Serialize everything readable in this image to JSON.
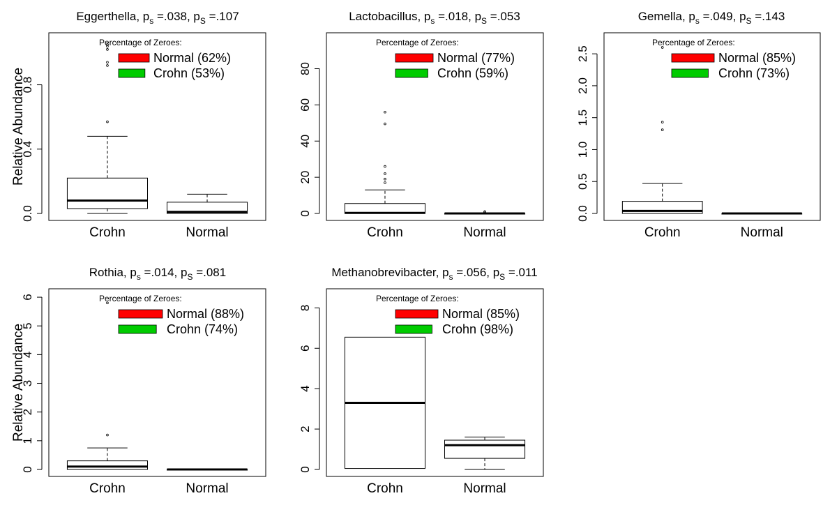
{
  "chart_data": [
    {
      "type": "boxplot",
      "title": {
        "name": "Eggerthella",
        "p1": ".038",
        "p2": ".107"
      },
      "ylabel": "Relative Abundance",
      "ylim": [
        0,
        1.08
      ],
      "yticks": [
        0,
        0.4,
        0.8
      ],
      "ytick_labels": [
        "0.0",
        "0.4",
        "0.8"
      ],
      "categories": [
        "Crohn",
        "Normal"
      ],
      "legend": {
        "title": "Percentage of Zeroes:",
        "entries": [
          {
            "label": "Normal (62%)",
            "color": "#ff0000"
          },
          {
            "label": "Crohn (53%)",
            "color": "#00cc00"
          }
        ]
      },
      "boxes": [
        {
          "name": "Crohn",
          "whisker_low": 0.0,
          "q1": 0.03,
          "median": 0.08,
          "q3": 0.22,
          "whisker_high": 0.48,
          "outliers": [
            0.57,
            0.92,
            0.94,
            1.02,
            1.04,
            1.05
          ]
        },
        {
          "name": "Normal",
          "whisker_low": 0.0,
          "q1": 0.0,
          "median": 0.01,
          "q3": 0.07,
          "whisker_high": 0.12,
          "outliers": []
        }
      ]
    },
    {
      "type": "boxplot",
      "title": {
        "name": "Lactobacillus",
        "p1": ".018",
        "p2": ".053"
      },
      "ylabel": "",
      "ylim": [
        0,
        96
      ],
      "yticks": [
        0,
        20,
        40,
        60,
        80
      ],
      "ytick_labels": [
        "0",
        "20",
        "40",
        "60",
        "80"
      ],
      "categories": [
        "Crohn",
        "Normal"
      ],
      "legend": {
        "title": "Percentage of Zeroes:",
        "entries": [
          {
            "label": "Normal (77%)",
            "color": "#ff0000"
          },
          {
            "label": "Crohn (59%)",
            "color": "#00cc00"
          }
        ]
      },
      "boxes": [
        {
          "name": "Crohn",
          "whisker_low": 0,
          "q1": 0,
          "median": 0.3,
          "q3": 5.5,
          "whisker_high": 13,
          "outliers": [
            17,
            19,
            22,
            26,
            49.5,
            56
          ]
        },
        {
          "name": "Normal",
          "whisker_low": 0,
          "q1": 0,
          "median": 0,
          "q3": 0,
          "whisker_high": 0,
          "outliers": [
            0.7,
            1.0
          ]
        }
      ]
    },
    {
      "type": "boxplot",
      "title": {
        "name": "Gemella",
        "p1": ".049",
        "p2": ".143"
      },
      "ylabel": "",
      "ylim": [
        0,
        2.72
      ],
      "yticks": [
        0,
        0.5,
        1.0,
        1.5,
        2.0,
        2.5
      ],
      "ytick_labels": [
        "0.0",
        "0.5",
        "1.0",
        "1.5",
        "2.0",
        "2.5"
      ],
      "categories": [
        "Crohn",
        "Normal"
      ],
      "legend": {
        "title": "Percentage of Zeroes:",
        "entries": [
          {
            "label": "Normal (85%)",
            "color": "#ff0000"
          },
          {
            "label": "Crohn (73%)",
            "color": "#00cc00"
          }
        ]
      },
      "boxes": [
        {
          "name": "Crohn",
          "whisker_low": 0,
          "q1": 0,
          "median": 0.04,
          "q3": 0.19,
          "whisker_high": 0.47,
          "outliers": [
            1.31,
            1.43,
            2.6
          ]
        },
        {
          "name": "Normal",
          "whisker_low": 0,
          "q1": 0,
          "median": 0,
          "q3": 0,
          "whisker_high": 0,
          "outliers": []
        }
      ]
    },
    {
      "type": "boxplot",
      "title": {
        "name": "Rothia",
        "p1": ".014",
        "p2": ".081"
      },
      "ylabel": "Relative Abundance",
      "ylim": [
        0,
        6.05
      ],
      "yticks": [
        0,
        1,
        2,
        3,
        4,
        5,
        6
      ],
      "ytick_labels": [
        "0",
        "1",
        "2",
        "3",
        "4",
        "5",
        "6"
      ],
      "categories": [
        "Crohn",
        "Normal"
      ],
      "legend": {
        "title": "Percentage of Zeroes:",
        "entries": [
          {
            "label": "Normal (88%)",
            "color": "#ff0000"
          },
          {
            "label": "Crohn (74%)",
            "color": "#00cc00"
          }
        ]
      },
      "boxes": [
        {
          "name": "Crohn",
          "whisker_low": 0,
          "q1": 0,
          "median": 0.1,
          "q3": 0.3,
          "whisker_high": 0.75,
          "outliers": [
            1.2,
            5.8
          ]
        },
        {
          "name": "Normal",
          "whisker_low": 0,
          "q1": 0,
          "median": 0,
          "q3": 0,
          "whisker_high": 0,
          "outliers": []
        }
      ]
    },
    {
      "type": "boxplot",
      "title": {
        "name": "Methanobrevibacter",
        "p1": ".056",
        "p2": ".011"
      },
      "ylabel": "",
      "ylim": [
        0,
        8.6
      ],
      "yticks": [
        0,
        2,
        4,
        6,
        8
      ],
      "ytick_labels": [
        "0",
        "2",
        "4",
        "6",
        "8"
      ],
      "categories": [
        "Crohn",
        "Normal"
      ],
      "legend": {
        "title": "Percentage of Zeroes:",
        "entries": [
          {
            "label": "Normal (85%)",
            "color": "#ff0000"
          },
          {
            "label": "Crohn (98%)",
            "color": "#00cc00"
          }
        ]
      },
      "boxes": [
        {
          "name": "Crohn",
          "whisker_low": 0.05,
          "q1": 0.05,
          "median": 3.3,
          "q3": 6.55,
          "whisker_high": 6.55,
          "outliers": []
        },
        {
          "name": "Normal",
          "whisker_low": 0.0,
          "q1": 0.55,
          "median": 1.2,
          "q3": 1.45,
          "whisker_high": 1.6,
          "outliers": []
        }
      ]
    }
  ]
}
